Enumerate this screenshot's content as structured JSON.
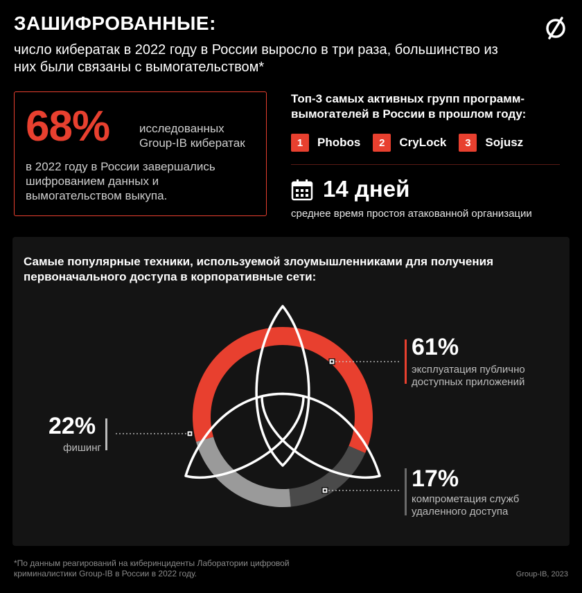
{
  "header": {
    "title": "ЗАШИФРОВАННЫЕ:",
    "subtitle": "число кибератак в 2022 году в России выросло в три раза, большинство из них были связаны с вымогательством*",
    "logo_icon": "slashed-circle-icon"
  },
  "stat": {
    "percent": "68%",
    "percent_label": "исследованных Group-IB кибератак",
    "description": "в 2022 году в России завершались шифрованием данных и вымогательством выкупа."
  },
  "top3": {
    "title": "Топ-3 самых активных групп программ-вымогателей в России в прошлом году:",
    "groups": [
      {
        "rank": "1",
        "name": "Phobos"
      },
      {
        "rank": "2",
        "name": "CryLock"
      },
      {
        "rank": "3",
        "name": "Sojusz"
      }
    ]
  },
  "downtime": {
    "icon": "calendar-icon",
    "value": "14 дней",
    "description": "среднее время простоя атакованной организации"
  },
  "chart_data": {
    "type": "pie",
    "title": "Самые популярные техники, используемой злоумышленниками для получения первоначального доступа в корпоративные сети:",
    "unit": "%",
    "slices": [
      {
        "value": 61,
        "label": "61%",
        "description": "эксплуатация публично доступных приложений",
        "color": "#e8402f"
      },
      {
        "value": 17,
        "label": "17%",
        "description": "компрометация служб удаленного доступа",
        "color": "#4a4a4a"
      },
      {
        "value": 22,
        "label": "22%",
        "description": "фишинг",
        "color": "#9a9a9a"
      }
    ]
  },
  "footer": {
    "footnote": "*По данным реагирований на киберинциденты Лаборатории цифровой криминалистики Group-IB в России в 2022 году.",
    "credit": "Group-IB, 2023"
  }
}
